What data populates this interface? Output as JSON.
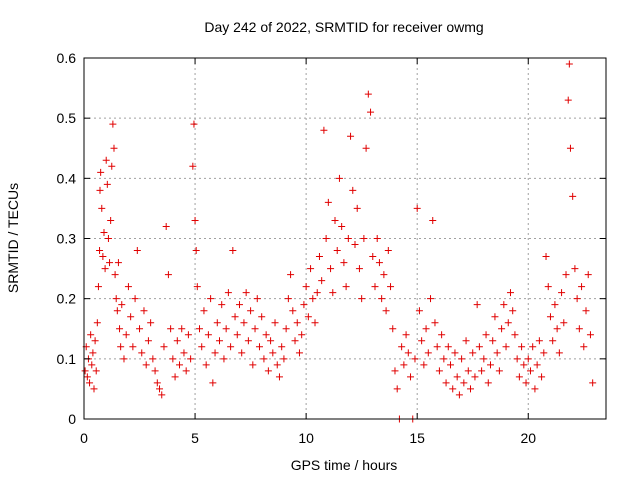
{
  "chart_data": {
    "type": "scatter",
    "title": "Day 242 of 2022, SRMTID for receiver owmg",
    "xlabel": "GPS time / hours",
    "ylabel": "SRMTID / TECUs",
    "xlim": [
      0,
      23.5
    ],
    "ylim": [
      0,
      0.6
    ],
    "xticks": [
      0,
      5,
      10,
      15,
      20
    ],
    "xtick_labels": [
      "0",
      "5",
      "10",
      "15",
      "20"
    ],
    "yticks": [
      0,
      0.1,
      0.2,
      0.3,
      0.4,
      0.5,
      0.6
    ],
    "ytick_labels": [
      "0",
      "0.1",
      "0.2",
      "0.3",
      "0.4",
      "0.5",
      "0.6"
    ],
    "grid": true,
    "marker": "+",
    "color": "#e00000",
    "series": [
      {
        "name": "SRMTID",
        "points": [
          [
            0.05,
            0.08
          ],
          [
            0.1,
            0.12
          ],
          [
            0.15,
            0.07
          ],
          [
            0.2,
            0.1
          ],
          [
            0.25,
            0.06
          ],
          [
            0.3,
            0.14
          ],
          [
            0.35,
            0.09
          ],
          [
            0.4,
            0.11
          ],
          [
            0.45,
            0.05
          ],
          [
            0.5,
            0.13
          ],
          [
            0.55,
            0.08
          ],
          [
            0.6,
            0.16
          ],
          [
            0.65,
            0.22
          ],
          [
            0.7,
            0.28
          ],
          [
            0.72,
            0.38
          ],
          [
            0.75,
            0.41
          ],
          [
            0.8,
            0.35
          ],
          [
            0.85,
            0.27
          ],
          [
            0.9,
            0.31
          ],
          [
            0.95,
            0.25
          ],
          [
            1.0,
            0.43
          ],
          [
            1.05,
            0.39
          ],
          [
            1.1,
            0.3
          ],
          [
            1.15,
            0.26
          ],
          [
            1.2,
            0.33
          ],
          [
            1.25,
            0.42
          ],
          [
            1.3,
            0.49
          ],
          [
            1.35,
            0.45
          ],
          [
            1.4,
            0.24
          ],
          [
            1.45,
            0.2
          ],
          [
            1.5,
            0.18
          ],
          [
            1.55,
            0.26
          ],
          [
            1.6,
            0.15
          ],
          [
            1.65,
            0.12
          ],
          [
            1.7,
            0.19
          ],
          [
            1.8,
            0.1
          ],
          [
            1.9,
            0.14
          ],
          [
            2.0,
            0.22
          ],
          [
            2.1,
            0.17
          ],
          [
            2.2,
            0.12
          ],
          [
            2.3,
            0.2
          ],
          [
            2.4,
            0.28
          ],
          [
            2.5,
            0.15
          ],
          [
            2.6,
            0.11
          ],
          [
            2.7,
            0.18
          ],
          [
            2.8,
            0.09
          ],
          [
            2.9,
            0.13
          ],
          [
            3.0,
            0.16
          ],
          [
            3.1,
            0.1
          ],
          [
            3.2,
            0.08
          ],
          [
            3.3,
            0.06
          ],
          [
            3.4,
            0.05
          ],
          [
            3.5,
            0.04
          ],
          [
            3.6,
            0.12
          ],
          [
            3.7,
            0.32
          ],
          [
            3.8,
            0.24
          ],
          [
            3.9,
            0.15
          ],
          [
            4.0,
            0.1
          ],
          [
            4.1,
            0.07
          ],
          [
            4.2,
            0.13
          ],
          [
            4.3,
            0.09
          ],
          [
            4.4,
            0.15
          ],
          [
            4.5,
            0.11
          ],
          [
            4.6,
            0.08
          ],
          [
            4.7,
            0.14
          ],
          [
            4.8,
            0.1
          ],
          [
            4.9,
            0.42
          ],
          [
            4.95,
            0.49
          ],
          [
            5.0,
            0.33
          ],
          [
            5.05,
            0.28
          ],
          [
            5.1,
            0.22
          ],
          [
            5.2,
            0.15
          ],
          [
            5.3,
            0.12
          ],
          [
            5.4,
            0.18
          ],
          [
            5.5,
            0.09
          ],
          [
            5.6,
            0.14
          ],
          [
            5.7,
            0.2
          ],
          [
            5.8,
            0.06
          ],
          [
            5.9,
            0.11
          ],
          [
            6.0,
            0.16
          ],
          [
            6.1,
            0.13
          ],
          [
            6.2,
            0.19
          ],
          [
            6.3,
            0.1
          ],
          [
            6.4,
            0.15
          ],
          [
            6.5,
            0.21
          ],
          [
            6.6,
            0.12
          ],
          [
            6.7,
            0.28
          ],
          [
            6.8,
            0.17
          ],
          [
            6.9,
            0.14
          ],
          [
            7.0,
            0.19
          ],
          [
            7.1,
            0.11
          ],
          [
            7.2,
            0.16
          ],
          [
            7.3,
            0.21
          ],
          [
            7.4,
            0.13
          ],
          [
            7.5,
            0.18
          ],
          [
            7.6,
            0.09
          ],
          [
            7.7,
            0.15
          ],
          [
            7.8,
            0.2
          ],
          [
            7.9,
            0.12
          ],
          [
            8.0,
            0.17
          ],
          [
            8.1,
            0.1
          ],
          [
            8.2,
            0.14
          ],
          [
            8.3,
            0.08
          ],
          [
            8.4,
            0.13
          ],
          [
            8.5,
            0.11
          ],
          [
            8.6,
            0.16
          ],
          [
            8.7,
            0.09
          ],
          [
            8.8,
            0.07
          ],
          [
            8.9,
            0.12
          ],
          [
            9.0,
            0.1
          ],
          [
            9.1,
            0.15
          ],
          [
            9.2,
            0.2
          ],
          [
            9.3,
            0.24
          ],
          [
            9.4,
            0.18
          ],
          [
            9.5,
            0.13
          ],
          [
            9.6,
            0.16
          ],
          [
            9.7,
            0.11
          ],
          [
            9.8,
            0.14
          ],
          [
            9.9,
            0.19
          ],
          [
            10.0,
            0.22
          ],
          [
            10.1,
            0.17
          ],
          [
            10.2,
            0.25
          ],
          [
            10.3,
            0.2
          ],
          [
            10.4,
            0.16
          ],
          [
            10.5,
            0.21
          ],
          [
            10.6,
            0.27
          ],
          [
            10.7,
            0.23
          ],
          [
            10.8,
            0.48
          ],
          [
            10.9,
            0.3
          ],
          [
            11.0,
            0.36
          ],
          [
            11.1,
            0.25
          ],
          [
            11.2,
            0.21
          ],
          [
            11.3,
            0.33
          ],
          [
            11.4,
            0.28
          ],
          [
            11.5,
            0.4
          ],
          [
            11.6,
            0.32
          ],
          [
            11.7,
            0.26
          ],
          [
            11.8,
            0.22
          ],
          [
            11.9,
            0.3
          ],
          [
            12.0,
            0.47
          ],
          [
            12.1,
            0.38
          ],
          [
            12.2,
            0.29
          ],
          [
            12.3,
            0.35
          ],
          [
            12.4,
            0.25
          ],
          [
            12.5,
            0.2
          ],
          [
            12.6,
            0.3
          ],
          [
            12.7,
            0.45
          ],
          [
            12.8,
            0.54
          ],
          [
            12.9,
            0.51
          ],
          [
            13.0,
            0.27
          ],
          [
            13.1,
            0.22
          ],
          [
            13.2,
            0.3
          ],
          [
            13.3,
            0.26
          ],
          [
            13.4,
            0.2
          ],
          [
            13.5,
            0.24
          ],
          [
            13.6,
            0.18
          ],
          [
            13.7,
            0.28
          ],
          [
            13.8,
            0.22
          ],
          [
            13.9,
            0.15
          ],
          [
            14.0,
            0.08
          ],
          [
            14.1,
            0.05
          ],
          [
            14.2,
            0.0
          ],
          [
            14.3,
            0.12
          ],
          [
            14.4,
            0.09
          ],
          [
            14.5,
            0.14
          ],
          [
            14.6,
            0.11
          ],
          [
            14.7,
            0.07
          ],
          [
            14.8,
            0.0
          ],
          [
            14.9,
            0.1
          ],
          [
            15.0,
            0.35
          ],
          [
            15.1,
            0.18
          ],
          [
            15.2,
            0.13
          ],
          [
            15.3,
            0.09
          ],
          [
            15.4,
            0.15
          ],
          [
            15.5,
            0.11
          ],
          [
            15.6,
            0.2
          ],
          [
            15.7,
            0.33
          ],
          [
            15.8,
            0.16
          ],
          [
            15.9,
            0.12
          ],
          [
            16.0,
            0.08
          ],
          [
            16.1,
            0.14
          ],
          [
            16.2,
            0.1
          ],
          [
            16.3,
            0.06
          ],
          [
            16.4,
            0.12
          ],
          [
            16.5,
            0.09
          ],
          [
            16.6,
            0.05
          ],
          [
            16.7,
            0.11
          ],
          [
            16.8,
            0.07
          ],
          [
            16.9,
            0.04
          ],
          [
            17.0,
            0.1
          ],
          [
            17.1,
            0.06
          ],
          [
            17.2,
            0.13
          ],
          [
            17.3,
            0.08
          ],
          [
            17.4,
            0.05
          ],
          [
            17.5,
            0.11
          ],
          [
            17.6,
            0.07
          ],
          [
            17.7,
            0.19
          ],
          [
            17.8,
            0.12
          ],
          [
            17.9,
            0.08
          ],
          [
            18.0,
            0.1
          ],
          [
            18.1,
            0.14
          ],
          [
            18.2,
            0.06
          ],
          [
            18.3,
            0.09
          ],
          [
            18.4,
            0.13
          ],
          [
            18.5,
            0.17
          ],
          [
            18.6,
            0.11
          ],
          [
            18.7,
            0.08
          ],
          [
            18.8,
            0.15
          ],
          [
            18.9,
            0.19
          ],
          [
            19.0,
            0.12
          ],
          [
            19.1,
            0.16
          ],
          [
            19.2,
            0.21
          ],
          [
            19.3,
            0.18
          ],
          [
            19.4,
            0.14
          ],
          [
            19.5,
            0.1
          ],
          [
            19.6,
            0.07
          ],
          [
            19.7,
            0.12
          ],
          [
            19.8,
            0.09
          ],
          [
            19.9,
            0.06
          ],
          [
            20.0,
            0.1
          ],
          [
            20.1,
            0.08
          ],
          [
            20.2,
            0.12
          ],
          [
            20.3,
            0.05
          ],
          [
            20.4,
            0.09
          ],
          [
            20.5,
            0.13
          ],
          [
            20.6,
            0.07
          ],
          [
            20.7,
            0.11
          ],
          [
            20.8,
            0.27
          ],
          [
            20.9,
            0.22
          ],
          [
            21.0,
            0.17
          ],
          [
            21.1,
            0.13
          ],
          [
            21.2,
            0.19
          ],
          [
            21.3,
            0.15
          ],
          [
            21.4,
            0.11
          ],
          [
            21.5,
            0.21
          ],
          [
            21.6,
            0.16
          ],
          [
            21.7,
            0.24
          ],
          [
            21.8,
            0.53
          ],
          [
            21.85,
            0.59
          ],
          [
            21.9,
            0.45
          ],
          [
            22.0,
            0.37
          ],
          [
            22.1,
            0.25
          ],
          [
            22.2,
            0.2
          ],
          [
            22.3,
            0.15
          ],
          [
            22.4,
            0.22
          ],
          [
            22.5,
            0.12
          ],
          [
            22.6,
            0.18
          ],
          [
            22.7,
            0.24
          ],
          [
            22.8,
            0.14
          ],
          [
            22.9,
            0.06
          ]
        ]
      }
    ]
  }
}
